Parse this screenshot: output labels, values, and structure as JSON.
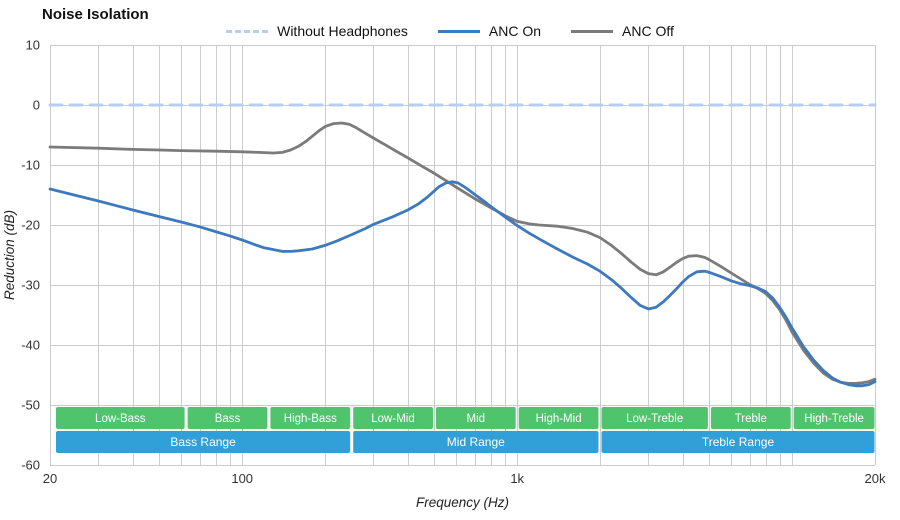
{
  "title": "Noise Isolation",
  "legend": [
    {
      "label": "Without Headphones",
      "color": "#b5cef2",
      "dashed": true
    },
    {
      "label": "ANC On",
      "color": "#3d79be",
      "dashed": false
    },
    {
      "label": "ANC Off",
      "color": "#7b7b7b",
      "dashed": false
    }
  ],
  "chart_data": {
    "type": "line",
    "title": "Noise Isolation",
    "xlabel": "Frequency (Hz)",
    "ylabel": "Reduction (dB)",
    "x_scale": "log",
    "xlim": [
      20,
      20000
    ],
    "ylim": [
      -60,
      10
    ],
    "grid": true,
    "grid_color": "#cccccc",
    "y_ticks": [
      10,
      0,
      -10,
      -20,
      -30,
      -40,
      -50,
      -60
    ],
    "x_tick_labels": [
      {
        "value": 20,
        "label": "20"
      },
      {
        "value": 100,
        "label": "100"
      },
      {
        "value": 1000,
        "label": "1k"
      },
      {
        "value": 20000,
        "label": "20k"
      }
    ],
    "x_gridlines": [
      20,
      30,
      40,
      50,
      60,
      70,
      80,
      90,
      100,
      200,
      300,
      400,
      500,
      600,
      700,
      800,
      900,
      1000,
      2000,
      3000,
      4000,
      5000,
      6000,
      7000,
      8000,
      9000,
      10000,
      20000
    ],
    "series": [
      {
        "name": "Without Headphones",
        "color": "#b5cef2",
        "dashed": true,
        "width": 3,
        "points": [
          [
            20,
            0
          ],
          [
            20000,
            0
          ]
        ]
      },
      {
        "name": "ANC Off",
        "color": "#7b7b7b",
        "dashed": false,
        "width": 2.8,
        "points": [
          [
            20,
            -7
          ],
          [
            30,
            -7.2
          ],
          [
            40,
            -7.4
          ],
          [
            50,
            -7.5
          ],
          [
            60,
            -7.6
          ],
          [
            80,
            -7.7
          ],
          [
            100,
            -7.8
          ],
          [
            115,
            -7.9
          ],
          [
            130,
            -8
          ],
          [
            140,
            -7.9
          ],
          [
            150,
            -7.5
          ],
          [
            160,
            -6.9
          ],
          [
            170,
            -6.1
          ],
          [
            180,
            -5.2
          ],
          [
            190,
            -4.3
          ],
          [
            200,
            -3.6
          ],
          [
            215,
            -3.1
          ],
          [
            230,
            -3
          ],
          [
            245,
            -3.2
          ],
          [
            260,
            -3.8
          ],
          [
            280,
            -4.7
          ],
          [
            300,
            -5.5
          ],
          [
            330,
            -6.6
          ],
          [
            360,
            -7.6
          ],
          [
            400,
            -8.8
          ],
          [
            450,
            -10.2
          ],
          [
            500,
            -11.4
          ],
          [
            550,
            -12.6
          ],
          [
            600,
            -13.7
          ],
          [
            700,
            -15.6
          ],
          [
            800,
            -17.1
          ],
          [
            900,
            -18.4
          ],
          [
            1000,
            -19.4
          ],
          [
            1100,
            -19.8
          ],
          [
            1200,
            -20
          ],
          [
            1300,
            -20.1
          ],
          [
            1400,
            -20.2
          ],
          [
            1500,
            -20.4
          ],
          [
            1600,
            -20.6
          ],
          [
            1800,
            -21.2
          ],
          [
            2000,
            -22.1
          ],
          [
            2200,
            -23.4
          ],
          [
            2400,
            -24.8
          ],
          [
            2600,
            -26.2
          ],
          [
            2800,
            -27.4
          ],
          [
            3000,
            -28.1
          ],
          [
            3200,
            -28.3
          ],
          [
            3400,
            -27.8
          ],
          [
            3600,
            -27
          ],
          [
            3800,
            -26.2
          ],
          [
            4000,
            -25.6
          ],
          [
            4200,
            -25.2
          ],
          [
            4500,
            -25.1
          ],
          [
            4800,
            -25.4
          ],
          [
            5000,
            -25.8
          ],
          [
            5500,
            -26.9
          ],
          [
            6000,
            -28
          ],
          [
            6500,
            -29
          ],
          [
            7000,
            -29.9
          ],
          [
            7500,
            -30.6
          ],
          [
            8000,
            -31.4
          ],
          [
            8500,
            -32.6
          ],
          [
            9000,
            -34.1
          ],
          [
            9500,
            -35.9
          ],
          [
            10000,
            -37.9
          ],
          [
            11000,
            -40.9
          ],
          [
            12000,
            -43.1
          ],
          [
            13000,
            -44.7
          ],
          [
            14000,
            -45.7
          ],
          [
            15000,
            -46.2
          ],
          [
            16000,
            -46.4
          ],
          [
            17000,
            -46.4
          ],
          [
            18000,
            -46.3
          ],
          [
            19000,
            -46.1
          ],
          [
            20000,
            -45.7
          ]
        ]
      },
      {
        "name": "ANC On",
        "color": "#3d79be",
        "dashed": false,
        "width": 2.8,
        "points": [
          [
            20,
            -14
          ],
          [
            25,
            -15.1
          ],
          [
            30,
            -16
          ],
          [
            35,
            -16.8
          ],
          [
            40,
            -17.5
          ],
          [
            50,
            -18.6
          ],
          [
            60,
            -19.5
          ],
          [
            70,
            -20.3
          ],
          [
            80,
            -21.1
          ],
          [
            90,
            -21.8
          ],
          [
            100,
            -22.5
          ],
          [
            110,
            -23.2
          ],
          [
            120,
            -23.8
          ],
          [
            130,
            -24.1
          ],
          [
            140,
            -24.4
          ],
          [
            150,
            -24.4
          ],
          [
            160,
            -24.3
          ],
          [
            180,
            -24
          ],
          [
            200,
            -23.4
          ],
          [
            220,
            -22.7
          ],
          [
            250,
            -21.6
          ],
          [
            280,
            -20.6
          ],
          [
            300,
            -19.9
          ],
          [
            350,
            -18.7
          ],
          [
            400,
            -17.5
          ],
          [
            440,
            -16.4
          ],
          [
            470,
            -15.4
          ],
          [
            500,
            -14.3
          ],
          [
            520,
            -13.6
          ],
          [
            550,
            -13
          ],
          [
            580,
            -12.8
          ],
          [
            610,
            -13
          ],
          [
            650,
            -13.8
          ],
          [
            700,
            -14.9
          ],
          [
            750,
            -15.9
          ],
          [
            800,
            -16.9
          ],
          [
            900,
            -18.6
          ],
          [
            1000,
            -20.1
          ],
          [
            1100,
            -21.3
          ],
          [
            1200,
            -22.3
          ],
          [
            1300,
            -23.2
          ],
          [
            1400,
            -24
          ],
          [
            1600,
            -25.4
          ],
          [
            1800,
            -26.5
          ],
          [
            2000,
            -27.7
          ],
          [
            2200,
            -29.1
          ],
          [
            2400,
            -30.6
          ],
          [
            2600,
            -32.1
          ],
          [
            2800,
            -33.4
          ],
          [
            3000,
            -34
          ],
          [
            3200,
            -33.7
          ],
          [
            3400,
            -32.8
          ],
          [
            3600,
            -31.7
          ],
          [
            3800,
            -30.6
          ],
          [
            4000,
            -29.5
          ],
          [
            4200,
            -28.6
          ],
          [
            4500,
            -27.8
          ],
          [
            4800,
            -27.7
          ],
          [
            5000,
            -27.9
          ],
          [
            5500,
            -28.6
          ],
          [
            6000,
            -29.3
          ],
          [
            6500,
            -29.8
          ],
          [
            7000,
            -30.1
          ],
          [
            7500,
            -30.5
          ],
          [
            8000,
            -31.1
          ],
          [
            8500,
            -32.2
          ],
          [
            9000,
            -33.7
          ],
          [
            9500,
            -35.4
          ],
          [
            10000,
            -37.2
          ],
          [
            11000,
            -40.3
          ],
          [
            12000,
            -42.6
          ],
          [
            13000,
            -44.3
          ],
          [
            14000,
            -45.5
          ],
          [
            15000,
            -46.2
          ],
          [
            16000,
            -46.6
          ],
          [
            17000,
            -46.8
          ],
          [
            18000,
            -46.8
          ],
          [
            19000,
            -46.6
          ],
          [
            20000,
            -46.1
          ]
        ]
      }
    ],
    "band_rows": [
      {
        "name": "sub-ranges",
        "color": "#4fc46d",
        "font_size": 11.5,
        "bands": [
          {
            "label": "Low-Bass",
            "from": 20,
            "to": 62.5
          },
          {
            "label": "Bass",
            "from": 62.5,
            "to": 125
          },
          {
            "label": "High-Bass",
            "from": 125,
            "to": 250
          },
          {
            "label": "Low-Mid",
            "from": 250,
            "to": 500
          },
          {
            "label": "Mid",
            "from": 500,
            "to": 1000
          },
          {
            "label": "High-Mid",
            "from": 1000,
            "to": 2000
          },
          {
            "label": "Low-Treble",
            "from": 2000,
            "to": 5000
          },
          {
            "label": "Treble",
            "from": 5000,
            "to": 10000
          },
          {
            "label": "High-Treble",
            "from": 10000,
            "to": 20000
          }
        ]
      },
      {
        "name": "main-ranges",
        "color": "#319fd8",
        "font_size": 12,
        "bands": [
          {
            "label": "Bass Range",
            "from": 20,
            "to": 250
          },
          {
            "label": "Mid Range",
            "from": 250,
            "to": 2000
          },
          {
            "label": "Treble Range",
            "from": 2000,
            "to": 20000
          }
        ]
      }
    ]
  }
}
